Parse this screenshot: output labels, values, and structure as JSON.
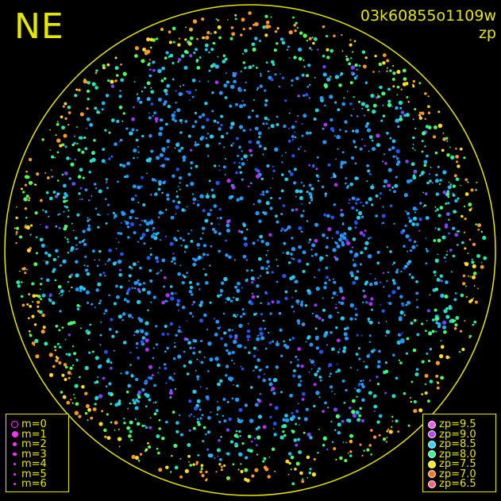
{
  "sky_view": {
    "corner_label": "NE",
    "exposure_id": "03k60855o1109w",
    "mode_label": "zp",
    "colors": {
      "background": "#000000",
      "circle": "#e6e600",
      "text": "#e6e600"
    }
  },
  "magnitude_legend": {
    "entries": [
      {
        "label": "m=0",
        "symbol": "open-circle",
        "color": "#ff33ff"
      },
      {
        "label": "m=1",
        "symbol": "dot-large",
        "color": "#ff33ff"
      },
      {
        "label": "m=2",
        "symbol": "dot",
        "color": "#ff33ff"
      },
      {
        "label": "m=3",
        "symbol": "dot",
        "color": "#ff33ff"
      },
      {
        "label": "m=4",
        "symbol": "dot",
        "color": "#ff33ff"
      },
      {
        "label": "m=5",
        "symbol": "dot",
        "color": "#ff33ff"
      },
      {
        "label": "m=6",
        "symbol": "dot-small",
        "color": "#ff33ff"
      }
    ]
  },
  "zp_legend": {
    "entries": [
      {
        "label": "zp=9.5",
        "color": "#ff55ff"
      },
      {
        "label": "zp=9.0",
        "color": "#bb44ff"
      },
      {
        "label": "zp=8.5",
        "color": "#22ddff"
      },
      {
        "label": "zp=8.0",
        "color": "#33ff99"
      },
      {
        "label": "zp=7.5",
        "color": "#ffee00"
      },
      {
        "label": "zp=7.0",
        "color": "#ff7722"
      },
      {
        "label": "zp=6.5",
        "color": "#ff6677"
      }
    ]
  }
}
